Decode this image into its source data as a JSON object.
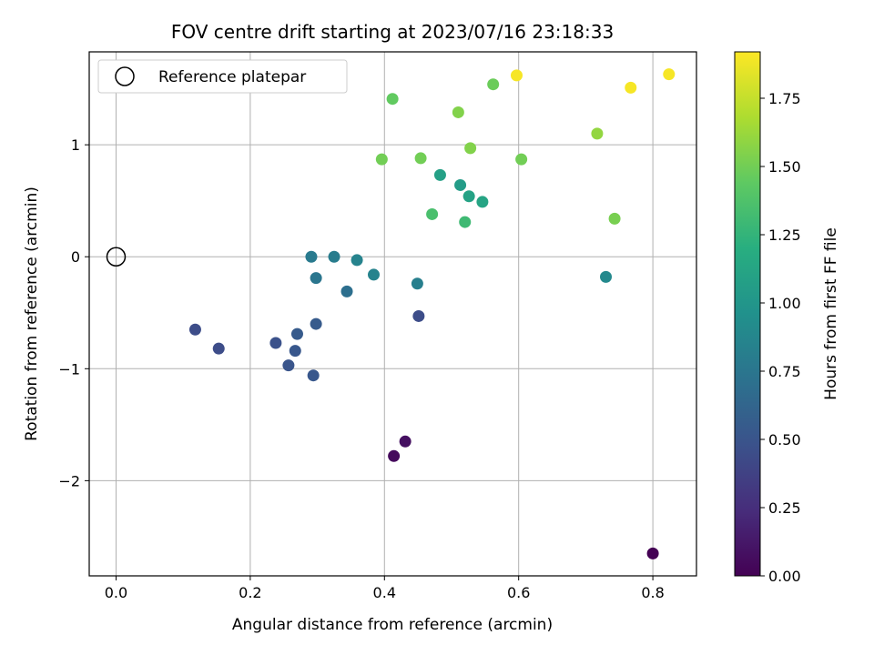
{
  "chart_data": {
    "type": "scatter",
    "title": "FOV centre drift starting at 2023/07/16 23:18:33",
    "xlabel": "Angular distance from reference (arcmin)",
    "ylabel": "Rotation from reference (arcmin)",
    "xlim": [
      -0.04,
      0.865
    ],
    "ylim": [
      -2.85,
      1.83
    ],
    "xticks": [
      0.0,
      0.2,
      0.4,
      0.6,
      0.8
    ],
    "xtick_labels": [
      "0.0",
      "0.2",
      "0.4",
      "0.6",
      "0.8"
    ],
    "yticks": [
      -2,
      -1,
      0,
      1
    ],
    "ytick_labels": [
      "−2",
      "−1",
      "0",
      "1"
    ],
    "grid": true,
    "legend": {
      "placement": "top-left",
      "entries": [
        "Reference platepar"
      ]
    },
    "reference_point": {
      "x": 0.0,
      "y": 0.0
    },
    "colorbar": {
      "label": "Hours from first FF file",
      "colormap": "viridis",
      "range": [
        0.0,
        1.92
      ],
      "ticks": [
        0.0,
        0.25,
        0.5,
        0.75,
        1.0,
        1.25,
        1.5,
        1.75
      ],
      "tick_labels": [
        "0.00",
        "0.25",
        "0.50",
        "0.75",
        "1.00",
        "1.25",
        "1.50",
        "1.75"
      ]
    },
    "series": [
      {
        "points": [
          {
            "x": 0.8,
            "y": -2.65,
            "c": 0.0
          },
          {
            "x": 0.414,
            "y": -1.78,
            "c": 0.05
          },
          {
            "x": 0.431,
            "y": -1.65,
            "c": 0.08
          },
          {
            "x": 0.451,
            "y": -0.53,
            "c": 0.45
          },
          {
            "x": 0.118,
            "y": -0.65,
            "c": 0.45
          },
          {
            "x": 0.153,
            "y": -0.82,
            "c": 0.45
          },
          {
            "x": 0.238,
            "y": -0.77,
            "c": 0.48
          },
          {
            "x": 0.257,
            "y": -0.97,
            "c": 0.5
          },
          {
            "x": 0.267,
            "y": -0.84,
            "c": 0.52
          },
          {
            "x": 0.294,
            "y": -1.06,
            "c": 0.52
          },
          {
            "x": 0.27,
            "y": -0.69,
            "c": 0.55
          },
          {
            "x": 0.298,
            "y": -0.6,
            "c": 0.55
          },
          {
            "x": 0.344,
            "y": -0.31,
            "c": 0.7
          },
          {
            "x": 0.298,
            "y": -0.19,
            "c": 0.75
          },
          {
            "x": 0.291,
            "y": 0.0,
            "c": 0.78
          },
          {
            "x": 0.325,
            "y": 0.0,
            "c": 0.8
          },
          {
            "x": 0.359,
            "y": -0.03,
            "c": 0.85
          },
          {
            "x": 0.384,
            "y": -0.16,
            "c": 0.85
          },
          {
            "x": 0.449,
            "y": -0.24,
            "c": 0.82
          },
          {
            "x": 0.73,
            "y": -0.18,
            "c": 0.9
          },
          {
            "x": 0.513,
            "y": 0.64,
            "c": 1.05
          },
          {
            "x": 0.483,
            "y": 0.73,
            "c": 1.08
          },
          {
            "x": 0.526,
            "y": 0.54,
            "c": 1.1
          },
          {
            "x": 0.546,
            "y": 0.49,
            "c": 1.12
          },
          {
            "x": 0.52,
            "y": 0.31,
            "c": 1.3
          },
          {
            "x": 0.471,
            "y": 0.38,
            "c": 1.35
          },
          {
            "x": 0.396,
            "y": 0.87,
            "c": 1.5
          },
          {
            "x": 0.454,
            "y": 0.88,
            "c": 1.5
          },
          {
            "x": 0.412,
            "y": 1.41,
            "c": 1.45
          },
          {
            "x": 0.528,
            "y": 0.97,
            "c": 1.55
          },
          {
            "x": 0.51,
            "y": 1.29,
            "c": 1.55
          },
          {
            "x": 0.562,
            "y": 1.54,
            "c": 1.48
          },
          {
            "x": 0.604,
            "y": 0.87,
            "c": 1.5
          },
          {
            "x": 0.743,
            "y": 0.34,
            "c": 1.52
          },
          {
            "x": 0.717,
            "y": 1.1,
            "c": 1.6
          },
          {
            "x": 0.597,
            "y": 1.62,
            "c": 1.9
          },
          {
            "x": 0.767,
            "y": 1.51,
            "c": 1.9
          },
          {
            "x": 0.824,
            "y": 1.63,
            "c": 1.9
          }
        ]
      }
    ]
  }
}
